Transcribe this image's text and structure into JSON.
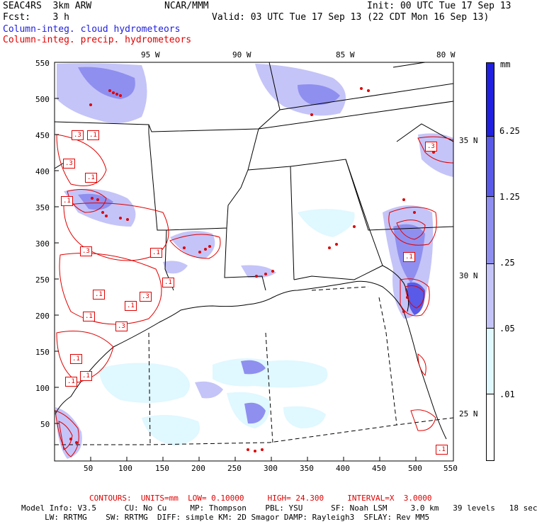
{
  "header": {
    "left_line1": "SEAC4RS  3km ARW",
    "center_line1": "NCAR/MMM",
    "right_line1": "Init: 00 UTC Tue 17 Sep 13",
    "left_line2": "Fcst:    3 h",
    "right_line2": "Valid: 03 UTC Tue 17 Sep 13 (22 CDT Mon 16 Sep 13)",
    "legend_cloud": "Column-integ. cloud hydrometeors",
    "legend_precip": "Column-integ. precip. hydrometeors"
  },
  "longitude_labels": [
    "95 W",
    "90 W",
    "85 W",
    "80 W"
  ],
  "latitude_labels": [
    "35 N",
    "30 N",
    "25 N"
  ],
  "y_ticks": [
    "550",
    "500",
    "450",
    "400",
    "350",
    "300",
    "250",
    "200",
    "150",
    "100",
    "50"
  ],
  "x_ticks": [
    "50",
    "100",
    "150",
    "200",
    "250",
    "300",
    "350",
    "400",
    "450",
    "500",
    "550"
  ],
  "colorbar": {
    "unit": "mm",
    "levels": [
      "6.25",
      "1.25",
      ".25",
      ".05",
      ".01"
    ],
    "colors": [
      "#2020e0",
      "#5a5ae8",
      "#8f8ff0",
      "#c4c4f8",
      "#e0f8ff",
      "#ffffff"
    ]
  },
  "contour_labels": [
    ".3",
    ".1",
    ".3",
    ".1",
    ".1",
    ".3",
    ".1",
    ".1",
    ".1",
    ".1",
    ".3",
    ".1",
    ".3",
    ".1",
    ".1",
    ".1",
    ".1",
    ".3",
    ".1"
  ],
  "footer": {
    "contours": "CONTOURS:  UNITS=mm  LOW= 0.10000     HIGH= 24.300     INTERVAL=X  3.0000",
    "model_line1": "Model Info: V3.5      CU: No Cu     MP: Thompson    PBL: YSU      SF: Noah LSM     3.0 km   39 levels   18 sec",
    "model_line2": "     LW: RRTMG    SW: RRTMG  DIFF: simple KM: 2D Smagor DAMP: Rayleigh3  SFLAY: Rev MM5"
  }
}
